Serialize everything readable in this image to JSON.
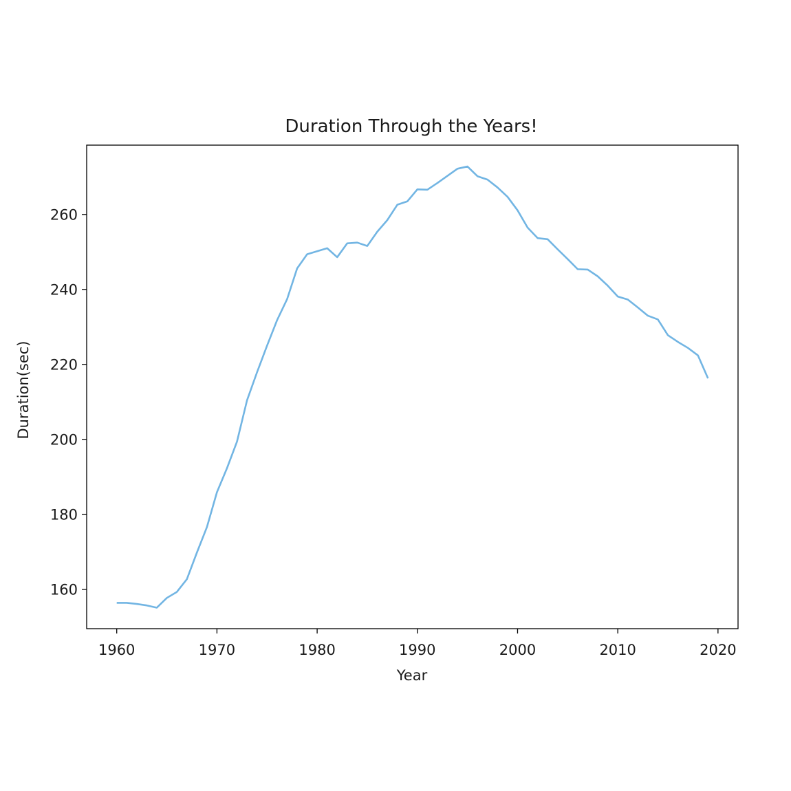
{
  "chart_data": {
    "type": "line",
    "title": "Duration Through the Years!",
    "xlabel": "Year",
    "ylabel": "Duration(sec)",
    "xlim": [
      1957,
      2022
    ],
    "ylim": [
      149.5,
      278.5
    ],
    "xticks": [
      1960,
      1970,
      1980,
      1990,
      2000,
      2010,
      2020
    ],
    "yticks": [
      160,
      180,
      200,
      220,
      240,
      260
    ],
    "grid": false,
    "legend": "none",
    "series": [
      {
        "color": "#72b5e3",
        "x": [
          1960,
          1961,
          1962,
          1963,
          1964,
          1965,
          1966,
          1967,
          1968,
          1969,
          1970,
          1971,
          1972,
          1973,
          1974,
          1975,
          1976,
          1977,
          1978,
          1979,
          1980,
          1981,
          1982,
          1983,
          1984,
          1985,
          1986,
          1987,
          1988,
          1989,
          1990,
          1991,
          1992,
          1993,
          1994,
          1995,
          1996,
          1997,
          1998,
          1999,
          2000,
          2001,
          2002,
          2003,
          2004,
          2005,
          2006,
          2007,
          2008,
          2009,
          2010,
          2011,
          2012,
          2013,
          2014,
          2015,
          2016,
          2017,
          2018,
          2019
        ],
        "y": [
          156.4,
          156.4,
          156.1,
          155.7,
          155.1,
          157.7,
          159.3,
          162.7,
          169.8,
          176.6,
          185.9,
          192.3,
          199.4,
          210.4,
          217.9,
          225.0,
          231.8,
          237.4,
          245.6,
          249.4,
          250.2,
          251.0,
          248.6,
          252.3,
          252.5,
          251.6,
          255.4,
          258.5,
          262.6,
          263.5,
          266.7,
          266.6,
          268.4,
          270.3,
          272.2,
          272.8,
          270.2,
          269.3,
          267.2,
          264.7,
          261.1,
          256.5,
          253.7,
          253.4,
          250.7,
          248.1,
          245.4,
          245.3,
          243.5,
          241.0,
          238.1,
          237.3,
          235.2,
          233.0,
          232.0,
          227.8,
          226.0,
          224.4,
          222.4,
          216.3
        ]
      }
    ]
  }
}
